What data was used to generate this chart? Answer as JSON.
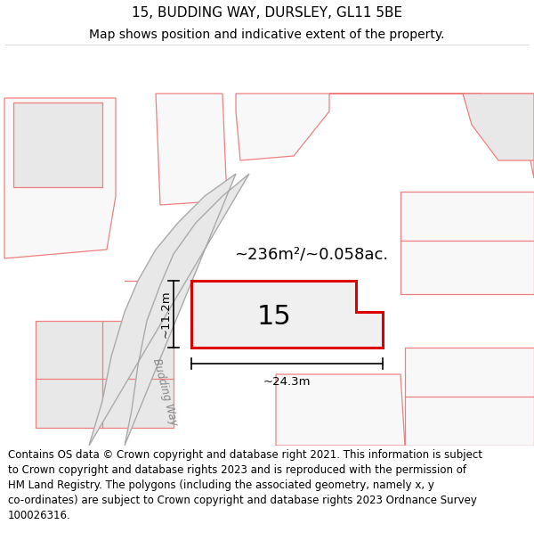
{
  "title_line1": "15, BUDDING WAY, DURSLEY, GL11 5BE",
  "title_line2": "Map shows position and indicative extent of the property.",
  "footer_text": "Contains OS data © Crown copyright and database right 2021. This information is subject\nto Crown copyright and database rights 2023 and is reproduced with the permission of\nHM Land Registry. The polygons (including the associated geometry, namely x, y\nco-ordinates) are subject to Crown copyright and database rights 2023 Ordnance Survey\n100026316.",
  "background_color": "#ffffff",
  "map_background": "#ffffff",
  "plot_outline_color": "#dd0000",
  "plot_fill_color": "#f0f0f0",
  "road_fill_color": "#e8e8e8",
  "boundary_color": "#f08080",
  "gray_line_color": "#aaaaaa",
  "area_text": "~236m²/~0.058ac.",
  "number_text": "15",
  "width_label": "~24.3m",
  "height_label": "~11.2m",
  "road_label": "Budding Way",
  "fig_width": 6.0,
  "fig_height": 6.25,
  "title_fontsize": 11,
  "subtitle_fontsize": 10,
  "footer_fontsize": 8.5
}
